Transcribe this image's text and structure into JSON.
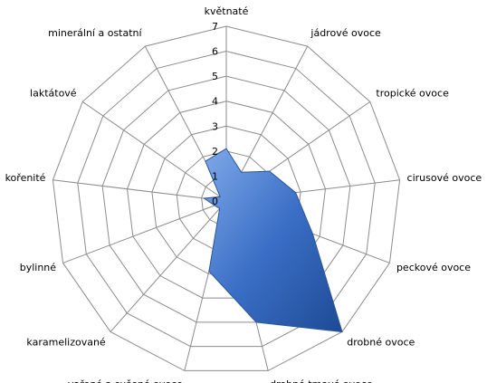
{
  "chart_data": {
    "type": "radar",
    "categories": [
      "květnaté",
      "jádrové ovoce",
      "tropické ovoce",
      "cirusové ovoce",
      "peckové ovoce",
      "drobné ovoce",
      "drobné tmavé ovoce",
      "vařené a sušené ovoce",
      "karamelizované",
      "bylinné",
      "kořenité",
      "laktátové",
      "minerální a ostatní"
    ],
    "values": [
      2.1,
      1.3,
      2.1,
      2.8,
      3.7,
      7,
      5,
      2.9,
      0.4,
      0.5,
      0.9,
      0.3,
      1.8
    ],
    "color": "#3a6fc6",
    "rlim": [
      0,
      7
    ],
    "rticks": [
      0,
      1,
      2,
      3,
      4,
      5,
      6,
      7
    ],
    "grid": true
  }
}
